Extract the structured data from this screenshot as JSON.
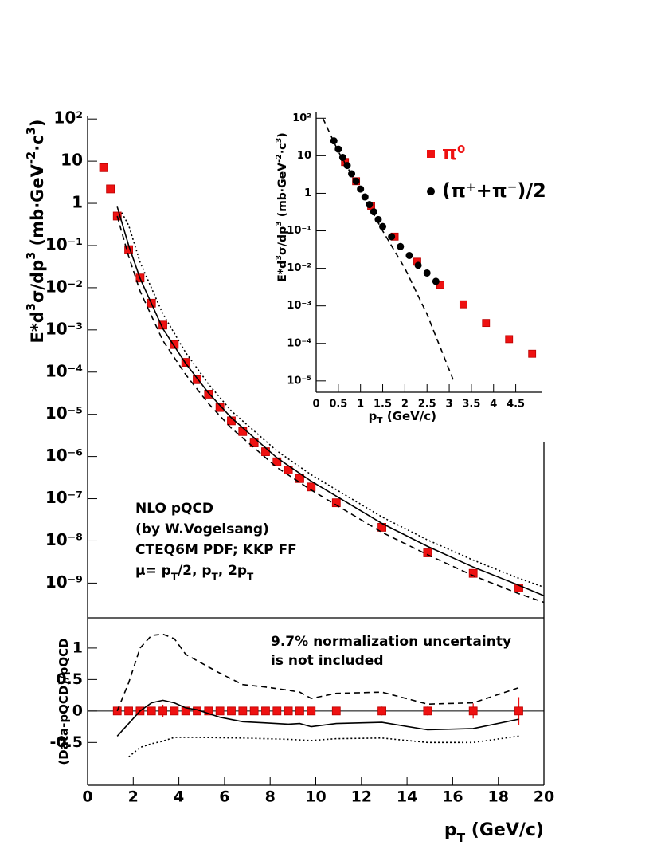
{
  "chart_data": [
    {
      "type": "scatter",
      "log_y": true,
      "xlim": [
        0,
        20
      ],
      "ylim": [
        1.5e-10,
        120
      ],
      "yticks": [
        {
          "value": 100,
          "label": "10²"
        },
        10,
        1,
        {
          "value": 0.1,
          "label": "10⁻¹"
        },
        {
          "value": 0.01,
          "label": "10⁻²"
        },
        {
          "value": 0.001,
          "label": "10⁻³"
        },
        {
          "value": 0.0001,
          "label": "10⁻⁴"
        },
        {
          "value": 1e-05,
          "label": "10⁻⁵"
        },
        {
          "value": 1e-06,
          "label": "10⁻⁶"
        },
        {
          "value": 1e-07,
          "label": "10⁻⁷"
        },
        {
          "value": 1e-08,
          "label": "10⁻⁸"
        },
        {
          "value": 1e-09,
          "label": "10⁻⁹"
        }
      ],
      "y_label": [
        {
          "text": "E*d"
        },
        {
          "text": "3",
          "shift": "super"
        },
        {
          "text": "σ/dp"
        },
        {
          "text": "3",
          "shift": "super"
        },
        {
          "text": " (mb·GeV"
        },
        {
          "text": "-2",
          "shift": "super"
        },
        {
          "text": "·c"
        },
        {
          "text": "3",
          "shift": "super"
        },
        {
          "text": ")"
        }
      ],
      "annotation": [
        [
          {
            "text": "NLO pQCD"
          }
        ],
        [
          {
            "text": "(by W.Vogelsang)"
          }
        ],
        [
          {
            "text": "CTEQ6M PDF; KKP FF"
          }
        ],
        [
          {
            "text": "μ= p"
          },
          {
            "text": "T",
            "shift": "sub"
          },
          {
            "text": "/2, p"
          },
          {
            "text": "T",
            "shift": "sub"
          },
          {
            "text": ", 2p"
          },
          {
            "text": "T",
            "shift": "sub"
          }
        ]
      ],
      "series": [
        {
          "color": "#ee1111",
          "marker": "square",
          "x": [
            0.7,
            1.0,
            1.3,
            1.8,
            2.3,
            2.8,
            3.3,
            3.8,
            4.3,
            4.8,
            5.3,
            5.8,
            6.3,
            6.8,
            7.3,
            7.8,
            8.3,
            8.8,
            9.3,
            9.8,
            10.9,
            12.9,
            14.9,
            16.9,
            18.9
          ],
          "values": [
            7,
            2.2,
            0.5,
            0.08,
            0.017,
            0.0043,
            0.0013,
            0.00045,
            0.00017,
            6.6e-05,
            3e-05,
            1.45e-05,
            7e-06,
            3.9e-06,
            2.1e-06,
            1.3e-06,
            7.5e-07,
            4.8e-07,
            3e-07,
            1.9e-07,
            8e-08,
            2.1e-08,
            5.2e-09,
            1.7e-09,
            7.7e-10
          ]
        },
        {
          "color": "#000000",
          "line": "solid",
          "x": [
            1.3,
            1.8,
            2.3,
            3.3,
            4.3,
            5.3,
            6.3,
            8.3,
            9.8,
            12.9,
            14.9,
            16.9,
            18.9,
            20
          ],
          "values": [
            0.83,
            0.1,
            0.0166,
            0.00107,
            0.00016,
            3.2e-05,
            8.3e-06,
            9.3e-07,
            2.6e-07,
            2.6e-08,
            7.4e-09,
            2.4e-09,
            8.9e-10,
            5e-10
          ]
        },
        {
          "color": "#000000",
          "line": "dashed",
          "x": [
            1.3,
            1.8,
            2.3,
            3.3,
            4.3,
            5.3,
            6.3,
            8.3,
            9.8,
            12.9,
            14.9,
            16.9,
            18.9,
            20
          ],
          "values": [
            0.5,
            0.055,
            0.0083,
            0.00056,
            8.7e-05,
            1.8e-05,
            4.7e-06,
            5.5e-07,
            1.6e-07,
            1.6e-08,
            4.7e-09,
            1.5e-09,
            5.6e-10,
            3.5e-10
          ]
        },
        {
          "color": "#000000",
          "line": "dotted",
          "x": [
            1.5,
            1.8,
            2.3,
            3.3,
            4.3,
            5.3,
            6.3,
            8.3,
            9.8,
            12.9,
            14.9,
            16.9,
            18.9,
            20
          ],
          "values": [
            0.6,
            0.3,
            0.04,
            0.0024,
            0.00029,
            5.2e-05,
            1.2e-05,
            1.35e-06,
            3.7e-07,
            3.7e-08,
            1.05e-08,
            3.5e-09,
            1.3e-09,
            8e-10
          ]
        }
      ]
    },
    {
      "type": "scatter",
      "xlim": [
        0,
        20
      ],
      "ylim": [
        -1.18,
        1.48
      ],
      "zero_line": true,
      "xticks": [
        0,
        2,
        4,
        6,
        8,
        10,
        12,
        14,
        16,
        18,
        20
      ],
      "yticks": [
        1,
        0.5,
        0,
        -0.5
      ],
      "x_label": [
        {
          "text": "p"
        },
        {
          "text": "T",
          "shift": "sub"
        },
        {
          "text": " (GeV/c)"
        }
      ],
      "y_label": [
        {
          "text": "(Data-pQCD)/pQCD"
        }
      ],
      "annotation": [
        [
          {
            "text": "9.7% normalization uncertainty"
          }
        ],
        [
          {
            "text": "is not included"
          }
        ]
      ],
      "series": [
        {
          "color": "#ee1111",
          "marker": "square",
          "x": [
            1.3,
            1.8,
            2.3,
            2.8,
            3.3,
            3.8,
            4.3,
            4.8,
            5.3,
            5.8,
            6.3,
            6.8,
            7.3,
            7.8,
            8.3,
            8.8,
            9.3,
            9.8,
            10.9,
            12.9,
            14.9,
            16.9,
            18.9
          ],
          "values": [
            0,
            0,
            0,
            0,
            0,
            0,
            0,
            0,
            0,
            0,
            0,
            0,
            0,
            0,
            0,
            0,
            0,
            0,
            0,
            0,
            0,
            0,
            0
          ],
          "errors": [
            0.02,
            0.02,
            0.02,
            0.02,
            0.1,
            0.03,
            0.02,
            0.02,
            0.02,
            0.02,
            0.02,
            0.02,
            0.02,
            0.02,
            0.02,
            0.02,
            0.02,
            0.02,
            0.03,
            0.07,
            0.07,
            0.12,
            0.22
          ]
        },
        {
          "color": "#000000",
          "line": "solid",
          "x": [
            1.3,
            1.8,
            2.3,
            2.8,
            3.3,
            3.8,
            4.3,
            4.8,
            5.8,
            6.8,
            7.8,
            8.8,
            9.3,
            9.8,
            10.9,
            12.9,
            14.9,
            16.9,
            18.9
          ],
          "values": [
            -0.4,
            -0.2,
            0.0,
            0.13,
            0.17,
            0.13,
            0.05,
            0.02,
            -0.1,
            -0.17,
            -0.19,
            -0.21,
            -0.2,
            -0.25,
            -0.2,
            -0.18,
            -0.3,
            -0.28,
            -0.13
          ]
        },
        {
          "color": "#000000",
          "line": "dashed",
          "x": [
            1.3,
            1.8,
            2.3,
            2.8,
            3.3,
            3.8,
            4.3,
            4.8,
            5.8,
            6.8,
            7.8,
            8.8,
            9.3,
            9.8,
            10.9,
            12.9,
            14.9,
            16.9,
            18.9
          ],
          "values": [
            0.0,
            0.45,
            1.0,
            1.2,
            1.22,
            1.15,
            0.9,
            0.8,
            0.6,
            0.42,
            0.38,
            0.33,
            0.3,
            0.2,
            0.28,
            0.3,
            0.11,
            0.13,
            0.37
          ]
        },
        {
          "color": "#000000",
          "line": "dotted",
          "x": [
            1.8,
            2.3,
            2.8,
            3.3,
            3.8,
            4.8,
            6.8,
            8.8,
            9.8,
            10.9,
            12.9,
            14.9,
            16.9,
            18.9
          ],
          "values": [
            -0.73,
            -0.58,
            -0.52,
            -0.48,
            -0.42,
            -0.42,
            -0.43,
            -0.45,
            -0.47,
            -0.44,
            -0.43,
            -0.5,
            -0.5,
            -0.4
          ]
        }
      ]
    },
    {
      "type": "scatter",
      "log_y": true,
      "xlim": [
        0,
        5.1
      ],
      "ylim": [
        5e-06,
        150
      ],
      "legend": "upper right",
      "xticks": [
        0,
        0.5,
        1,
        1.5,
        2,
        2.5,
        3,
        3.5,
        4,
        4.5
      ],
      "yticks": [
        {
          "value": 100,
          "label": "10²"
        },
        10,
        1,
        {
          "value": 0.1,
          "label": "10⁻¹"
        },
        {
          "value": 0.01,
          "label": "10⁻²"
        },
        {
          "value": 0.001,
          "label": "10⁻³"
        },
        {
          "value": 0.0001,
          "label": "10⁻⁴"
        },
        {
          "value": 1e-05,
          "label": "10⁻⁵"
        }
      ],
      "x_label": [
        {
          "text": "p"
        },
        {
          "text": "T",
          "shift": "sub"
        },
        {
          "text": " (GeV/c)"
        }
      ],
      "y_label": [
        {
          "text": "E*d"
        },
        {
          "text": "3",
          "shift": "super"
        },
        {
          "text": "σ/dp"
        },
        {
          "text": "3",
          "shift": "super"
        },
        {
          "text": " (mb·GeV"
        },
        {
          "text": "-2",
          "shift": "super"
        },
        {
          "text": "·c"
        },
        {
          "text": "3",
          "shift": "super"
        },
        {
          "text": ")"
        }
      ],
      "series": [
        {
          "name": "π⁰",
          "color": "#ee1111",
          "marker": "square",
          "x": [
            0.65,
            0.9,
            1.24,
            1.77,
            2.28,
            2.8,
            3.32,
            3.83,
            4.35,
            4.87
          ],
          "values": [
            6.8,
            2.1,
            0.46,
            0.07,
            0.015,
            0.0036,
            0.0011,
            0.00035,
            0.00013,
            5.3e-05
          ]
        },
        {
          "name": "(π⁺+π⁻)/2",
          "color": "#000000",
          "marker": "circle",
          "x": [
            0.4,
            0.5,
            0.6,
            0.7,
            0.8,
            0.9,
            1.0,
            1.1,
            1.2,
            1.3,
            1.4,
            1.5,
            1.7,
            1.9,
            2.1,
            2.3,
            2.5,
            2.7
          ],
          "values": [
            25,
            15,
            9,
            5.5,
            3.3,
            2.1,
            1.3,
            0.8,
            0.5,
            0.32,
            0.2,
            0.13,
            0.07,
            0.038,
            0.022,
            0.012,
            0.0075,
            0.0045
          ]
        },
        {
          "color": "#000000",
          "line": "dashed",
          "x": [
            0.15,
            0.5,
            1,
            1.5,
            2,
            2.5,
            3.1
          ],
          "values": [
            100,
            13,
            1.2,
            0.1,
            0.01,
            0.0006,
            1e-05
          ]
        }
      ]
    }
  ]
}
